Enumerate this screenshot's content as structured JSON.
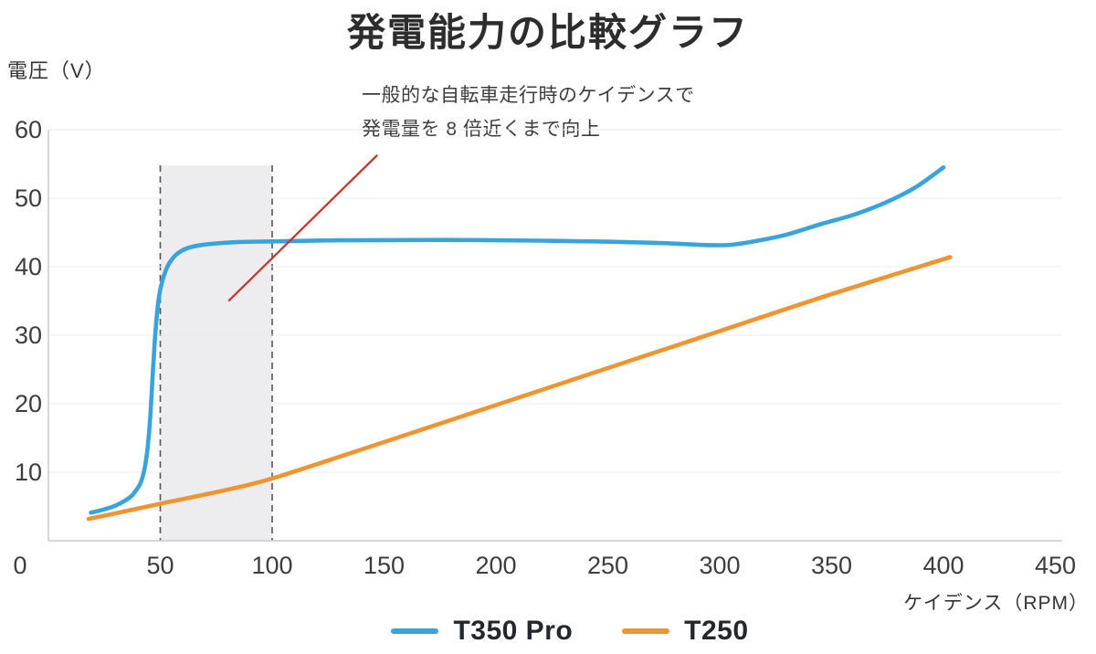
{
  "chart_data": {
    "type": "line",
    "title": "発電能力の比較グラフ",
    "ylabel": "電圧（V）",
    "xlabel": "ケイデンス（RPM）",
    "xlim": [
      0,
      453
    ],
    "ylim": [
      0,
      60
    ],
    "xticks": [
      0,
      50,
      100,
      150,
      200,
      250,
      300,
      350,
      400,
      450
    ],
    "yticks": [
      0,
      10,
      20,
      30,
      40,
      50,
      60
    ],
    "grid": "horizontal",
    "legend_position": "bottom-center",
    "colors": {
      "t350pro": "#38a4db",
      "t250": "#ee9430",
      "pointer_line": "#c8362e",
      "band_fill": "#edecef",
      "band_border": "#55555a",
      "gridline": "#ececec",
      "axis": "#cbcbcb"
    },
    "highlight_band": {
      "x_from": 50,
      "x_to": 100,
      "y_from": 0,
      "y_to": 54.8,
      "border_style": "dashed"
    },
    "annotation": {
      "line1": "一般的な自転車走行時のケイデンスで",
      "line2": "発電量を 8 倍近くまで向上",
      "pointer": {
        "from_xy": [
          147,
          56.3
        ],
        "to_xy": [
          80.5,
          35
        ]
      }
    },
    "series": [
      {
        "name": "T350 Pro",
        "color": "#38a4db",
        "points": [
          [
            19,
            4.1
          ],
          [
            24,
            4.5
          ],
          [
            29,
            5.0
          ],
          [
            34,
            5.8
          ],
          [
            37,
            6.5
          ],
          [
            39,
            7.3
          ],
          [
            41,
            8.3
          ],
          [
            42.5,
            9.8
          ],
          [
            43.5,
            11.5
          ],
          [
            44.5,
            14.0
          ],
          [
            45.5,
            18.0
          ],
          [
            46.5,
            23.5
          ],
          [
            47.5,
            29.0
          ],
          [
            48.5,
            33.0
          ],
          [
            49.5,
            35.8
          ],
          [
            51,
            38.0
          ],
          [
            53,
            39.9
          ],
          [
            55,
            41.0
          ],
          [
            58,
            42.0
          ],
          [
            62,
            42.7
          ],
          [
            67,
            43.1
          ],
          [
            75,
            43.4
          ],
          [
            85,
            43.6
          ],
          [
            100,
            43.7
          ],
          [
            130,
            43.85
          ],
          [
            160,
            43.9
          ],
          [
            190,
            43.9
          ],
          [
            220,
            43.8
          ],
          [
            250,
            43.65
          ],
          [
            270,
            43.5
          ],
          [
            285,
            43.3
          ],
          [
            295,
            43.15
          ],
          [
            305,
            43.2
          ],
          [
            317,
            43.8
          ],
          [
            330,
            44.7
          ],
          [
            345,
            46.2
          ],
          [
            360,
            47.6
          ],
          [
            375,
            49.5
          ],
          [
            388,
            51.7
          ],
          [
            400,
            54.5
          ]
        ]
      },
      {
        "name": "T250",
        "color": "#ee9430",
        "points": [
          [
            18,
            3.2
          ],
          [
            30,
            4.0
          ],
          [
            50,
            5.4
          ],
          [
            75,
            7.1
          ],
          [
            100,
            9.1
          ],
          [
            150,
            14.4
          ],
          [
            200,
            19.8
          ],
          [
            250,
            25.2
          ],
          [
            300,
            30.6
          ],
          [
            350,
            36.0
          ],
          [
            403,
            41.4
          ]
        ]
      }
    ]
  }
}
